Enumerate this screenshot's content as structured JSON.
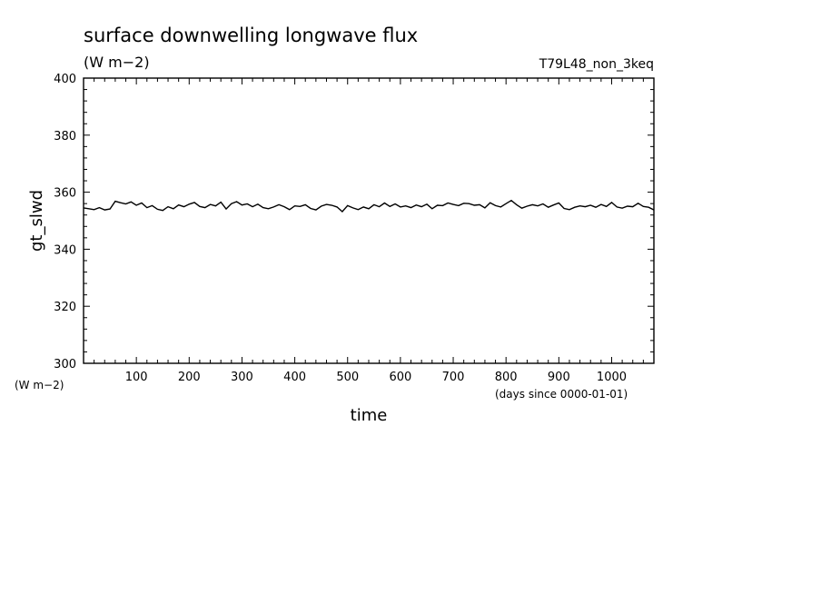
{
  "chart_data": {
    "type": "line",
    "title": "surface downwelling longwave flux",
    "title_units": "(W m−2)",
    "run_name": "T79L48_non_3keq",
    "ylabel": "gt_slwd",
    "ylabel_units": "(W m−2)",
    "xlabel": "time",
    "xlabel_units": "(days since 0000-01-01)",
    "xlim": [
      0,
      1080
    ],
    "ylim": [
      300,
      400
    ],
    "x_ticks": [
      100,
      200,
      300,
      400,
      500,
      600,
      700,
      800,
      900,
      1000
    ],
    "y_ticks": [
      300,
      320,
      340,
      360,
      380,
      400
    ],
    "grid": false,
    "series": [
      {
        "x": [
          0,
          10,
          20,
          30,
          40,
          50,
          60,
          70,
          80,
          90,
          100,
          110,
          120,
          130,
          140,
          150,
          160,
          170,
          180,
          190,
          200,
          210,
          220,
          230,
          240,
          250,
          260,
          270,
          280,
          290,
          300,
          310,
          320,
          330,
          340,
          350,
          360,
          370,
          380,
          390,
          400,
          410,
          420,
          430,
          440,
          450,
          460,
          470,
          480,
          490,
          500,
          510,
          520,
          530,
          540,
          550,
          560,
          570,
          580,
          590,
          600,
          610,
          620,
          630,
          640,
          650,
          660,
          670,
          680,
          690,
          700,
          710,
          720,
          730,
          740,
          750,
          760,
          770,
          780,
          790,
          800,
          810,
          820,
          830,
          840,
          850,
          860,
          870,
          880,
          890,
          900,
          910,
          920,
          930,
          940,
          950,
          960,
          970,
          980,
          990,
          1000,
          1010,
          1020,
          1030,
          1040,
          1050,
          1060,
          1070,
          1080
        ],
        "y": [
          354.5,
          354.2,
          353.9,
          354.6,
          353.8,
          354.1,
          356.8,
          356.3,
          355.9,
          356.6,
          355.4,
          356.2,
          354.6,
          355.3,
          354.0,
          353.6,
          354.9,
          354.2,
          355.5,
          354.9,
          355.8,
          356.4,
          355.0,
          354.6,
          355.7,
          355.2,
          356.5,
          354.1,
          356.0,
          356.7,
          355.5,
          355.9,
          354.9,
          355.8,
          354.6,
          354.2,
          354.8,
          355.6,
          354.9,
          353.9,
          355.2,
          355.0,
          355.6,
          354.3,
          353.8,
          355.1,
          355.7,
          355.4,
          354.8,
          353.2,
          355.3,
          354.5,
          353.9,
          354.8,
          354.2,
          355.6,
          354.9,
          356.2,
          355.0,
          355.9,
          354.8,
          355.2,
          354.6,
          355.5,
          354.9,
          355.8,
          354.2,
          355.4,
          355.3,
          356.2,
          355.7,
          355.3,
          356.1,
          356.0,
          355.4,
          355.6,
          354.5,
          356.3,
          355.3,
          354.8,
          356.0,
          357.1,
          355.6,
          354.4,
          355.1,
          355.6,
          355.2,
          355.9,
          354.7,
          355.5,
          356.2,
          354.3,
          353.9,
          354.7,
          355.2,
          354.9,
          355.4,
          354.7,
          355.7,
          355.0,
          356.4,
          354.8,
          354.4,
          355.1,
          354.9,
          356.1,
          355.0,
          354.7,
          353.8
        ]
      }
    ]
  }
}
